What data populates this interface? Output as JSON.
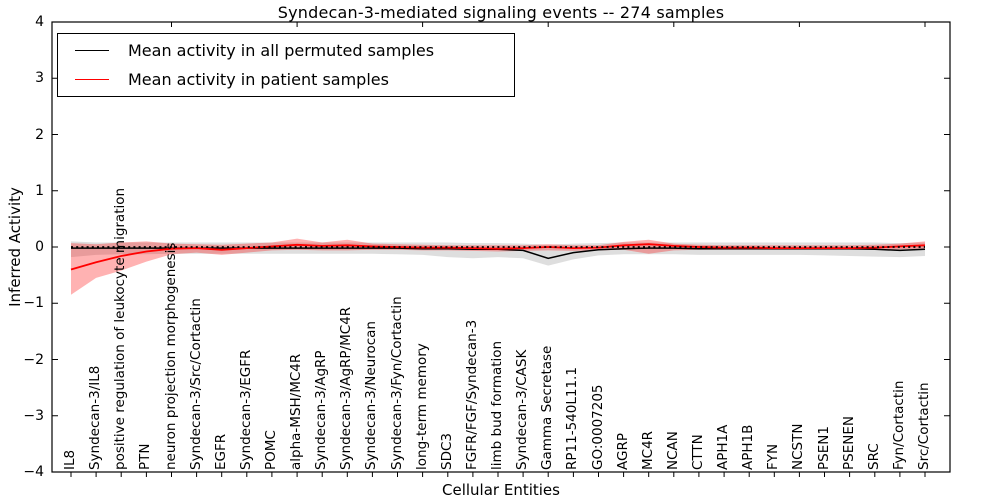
{
  "chart_data": {
    "type": "line",
    "title": "Syndecan-3-mediated signaling events -- 274 samples",
    "xlabel": "Cellular Entities",
    "ylabel": "Inferred Activity",
    "ylim": [
      -4,
      4
    ],
    "ytick_labels": [
      "4",
      "3",
      "2",
      "1",
      "0",
      "−1",
      "−2",
      "−3",
      "−4"
    ],
    "grid": false,
    "legend_position": "upper left",
    "categories": [
      "IL8",
      "Syndecan-3/IL8",
      "positive regulation of leukocyte migration",
      "PTN",
      "neuron projection morphogenesis",
      "Syndecan-3/Src/Cortactin",
      "EGFR",
      "Syndecan-3/EGFR",
      "POMC",
      "alpha-MSH/MC4R",
      "Syndecan-3/AgRP",
      "Syndecan-3/AgRP/MC4R",
      "Syndecan-3/Neurocan",
      "Syndecan-3/Fyn/Cortactin",
      "long-term memory",
      "SDC3",
      "FGFR/FGF/Syndecan-3",
      "limb bud formation",
      "Syndecan-3/CASK",
      "Gamma Secretase",
      "RP11-540L11.1",
      "GO:0007205",
      "AGRP",
      "MC4R",
      "NCAN",
      "CTTN",
      "APH1A",
      "APH1B",
      "FYN",
      "NCSTN",
      "PSEN1",
      "PSENEN",
      "SRC",
      "Fyn/Cortactin",
      "Src/Cortactin"
    ],
    "series": [
      {
        "name": "Mean activity in all permuted samples",
        "color": "#000000",
        "band_color": "#000000",
        "band_opacity": 0.13,
        "values": [
          -0.02,
          -0.02,
          -0.02,
          -0.02,
          -0.02,
          -0.02,
          -0.02,
          -0.02,
          -0.02,
          -0.02,
          -0.02,
          -0.02,
          -0.02,
          -0.02,
          -0.03,
          -0.03,
          -0.04,
          -0.04,
          -0.06,
          -0.2,
          -0.1,
          -0.05,
          -0.03,
          -0.02,
          -0.02,
          -0.03,
          -0.03,
          -0.03,
          -0.03,
          -0.03,
          -0.03,
          -0.03,
          -0.04,
          -0.06,
          -0.04
        ],
        "band_upper": [
          0.1,
          0.08,
          0.08,
          0.08,
          0.08,
          0.08,
          0.08,
          0.08,
          0.08,
          0.08,
          0.08,
          0.08,
          0.08,
          0.08,
          0.08,
          0.08,
          0.07,
          0.07,
          0.06,
          0.04,
          0.06,
          0.07,
          0.08,
          0.08,
          0.08,
          0.08,
          0.08,
          0.08,
          0.08,
          0.08,
          0.08,
          0.08,
          0.08,
          0.07,
          0.08
        ],
        "band_lower": [
          -0.18,
          -0.14,
          -0.13,
          -0.13,
          -0.12,
          -0.12,
          -0.12,
          -0.12,
          -0.12,
          -0.12,
          -0.12,
          -0.12,
          -0.12,
          -0.13,
          -0.14,
          -0.18,
          -0.2,
          -0.18,
          -0.2,
          -0.33,
          -0.22,
          -0.15,
          -0.13,
          -0.13,
          -0.13,
          -0.14,
          -0.14,
          -0.14,
          -0.14,
          -0.14,
          -0.15,
          -0.16,
          -0.17,
          -0.18,
          -0.16
        ]
      },
      {
        "name": "Mean activity in patient samples",
        "color": "#ff0000",
        "band_color": "#ff0000",
        "band_opacity": 0.3,
        "values": [
          -0.4,
          -0.27,
          -0.16,
          -0.08,
          -0.03,
          -0.02,
          -0.05,
          -0.02,
          0.01,
          0.04,
          0.02,
          0.03,
          0.01,
          0.0,
          -0.01,
          -0.01,
          -0.02,
          -0.03,
          -0.02,
          0.0,
          -0.02,
          -0.01,
          0.03,
          0.05,
          0.02,
          0.0,
          -0.01,
          -0.01,
          -0.02,
          -0.02,
          -0.02,
          -0.02,
          -0.01,
          0.01,
          0.03
        ],
        "band_upper": [
          0.07,
          0.05,
          0.08,
          0.1,
          0.06,
          0.05,
          0.04,
          0.06,
          0.08,
          0.15,
          0.08,
          0.13,
          0.06,
          0.05,
          0.04,
          0.03,
          0.03,
          0.03,
          0.03,
          0.05,
          0.03,
          0.03,
          0.09,
          0.13,
          0.06,
          0.04,
          0.03,
          0.03,
          0.03,
          0.03,
          0.03,
          0.03,
          0.04,
          0.06,
          0.1
        ],
        "band_lower": [
          -0.85,
          -0.55,
          -0.42,
          -0.26,
          -0.13,
          -0.1,
          -0.14,
          -0.1,
          -0.06,
          -0.05,
          -0.06,
          -0.06,
          -0.05,
          -0.05,
          -0.06,
          -0.06,
          -0.07,
          -0.08,
          -0.07,
          -0.06,
          -0.07,
          -0.06,
          -0.05,
          -0.12,
          -0.06,
          -0.05,
          -0.05,
          -0.05,
          -0.05,
          -0.05,
          -0.05,
          -0.05,
          -0.05,
          -0.04,
          -0.03
        ]
      }
    ],
    "zero_reference_line": {
      "value": 0,
      "style": "dotted",
      "color": "#000000"
    }
  }
}
